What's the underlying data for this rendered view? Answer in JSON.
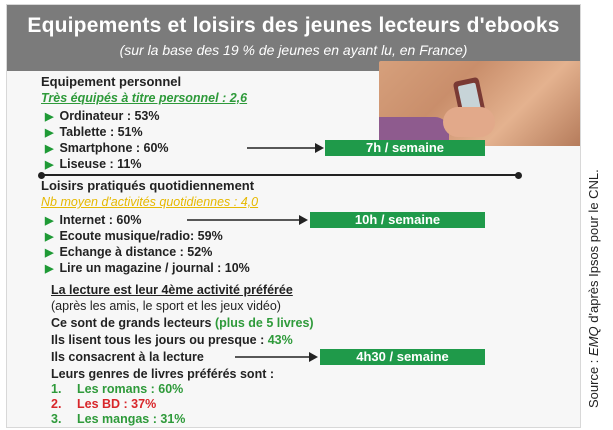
{
  "title": "Equipements et loisirs des jeunes lecteurs d'ebooks",
  "subtitle": "(sur la base des 19 % de jeunes en ayant lu, en France)",
  "equipement": {
    "heading": "Equipement personnel",
    "summary": "Très équipés à titre personnel : 2,6",
    "items": [
      "Ordinateur : 53%",
      "Tablette : 51%",
      "Smartphone : 60%",
      "Liseuse : 11%"
    ],
    "smartphone_time": "7h / semaine"
  },
  "loisirs": {
    "heading": "Loisirs pratiqués quotidiennement",
    "summary": "Nb moyen d'activités quotidiennes : 4,0",
    "items": [
      "Internet : 60%",
      "Ecoute musique/radio: 59%",
      "Echange à distance : 52%",
      "Lire un magazine / journal : 10%"
    ],
    "internet_time": "10h / semaine"
  },
  "lecture": {
    "rank_line": "La lecture est leur 4ème activité préférée",
    "rank_note": "(après les amis, le sport et les jeux vidéo)",
    "grands_prefix": "Ce sont de grands lecteurs ",
    "grands_highlight": "(plus de 5 livres)",
    "daily_prefix": "Ils lisent tous les jours ou presque : ",
    "daily_value": "43%",
    "time_line": "Ils consacrent à la lecture",
    "time_value": "4h30 / semaine",
    "genres_heading": "Leurs genres de livres préférés sont :",
    "genres": [
      {
        "num": "1.",
        "text": "Les romans : 60%"
      },
      {
        "num": "2.",
        "text": "Les BD : 37%"
      },
      {
        "num": "3.",
        "text": "Les mangas : 31%"
      }
    ]
  },
  "source": {
    "prefix": "Source : ",
    "brand": "EMQ",
    "suffix": " d'après Ipsos pour le CNL."
  },
  "colors": {
    "accent_green": "#1f9a4a",
    "highlight_yellow": "#e6b800",
    "genre_red": "#d8262a",
    "title_bar": "#7b7b7b"
  },
  "chart_data": {
    "type": "table",
    "title": "Equipements et loisirs des jeunes lecteurs d'ebooks",
    "subtitle": "(sur la base des 19 % de jeunes en ayant lu, en France)",
    "equipement_pct": {
      "Ordinateur": 53,
      "Tablette": 51,
      "Smartphone": 60,
      "Liseuse": 11
    },
    "equipement_moyen": 2.6,
    "loisirs_pct": {
      "Internet": 60,
      "Ecoute musique/radio": 59,
      "Echange à distance": 52,
      "Lire un magazine / journal": 10
    },
    "activites_moyennes": 4.0,
    "lecture_quotidienne_pct": 43,
    "genres_pct": {
      "Les romans": 60,
      "Les BD": 37,
      "Les mangas": 31
    },
    "temps": {
      "Smartphone": "7h / semaine",
      "Internet": "10h / semaine",
      "Lecture": "4h30 / semaine"
    }
  }
}
